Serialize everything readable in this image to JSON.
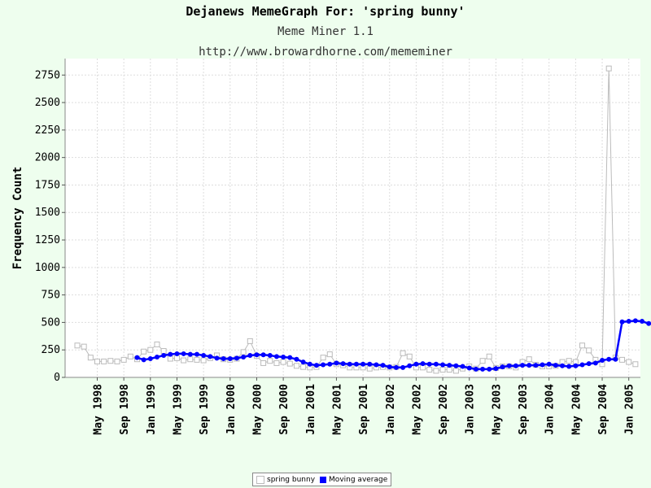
{
  "header": {
    "title": "Dejanews MemeGraph For: 'spring bunny'",
    "subtitle": "Meme Miner 1.1",
    "url": "http://www.browardhorne.com/mememiner"
  },
  "colors": {
    "background": "#eefeee",
    "plot_background": "#ffffff",
    "raw_series": "#bbbbbb",
    "moving_average": "#0000ff"
  },
  "chart_data": {
    "type": "line",
    "title": "Dejanews MemeGraph For: 'spring bunny'",
    "ylabel": "Frequency Count",
    "xlabel": "",
    "ylim": [
      0,
      2900
    ],
    "yticks": [
      0,
      250,
      500,
      750,
      1000,
      1250,
      1500,
      1750,
      2000,
      2250,
      2500,
      2750
    ],
    "x_start_month": "1998-02",
    "xticks": [
      {
        "label": "May 1998",
        "month_index": 3
      },
      {
        "label": "Sep 1998",
        "month_index": 7
      },
      {
        "label": "Jan 1999",
        "month_index": 11
      },
      {
        "label": "May 1999",
        "month_index": 15
      },
      {
        "label": "Sep 1999",
        "month_index": 19
      },
      {
        "label": "Jan 2000",
        "month_index": 23
      },
      {
        "label": "May 2000",
        "month_index": 27
      },
      {
        "label": "Sep 2000",
        "month_index": 31
      },
      {
        "label": "Jan 2001",
        "month_index": 35
      },
      {
        "label": "May 2001",
        "month_index": 39
      },
      {
        "label": "Sep 2001",
        "month_index": 43
      },
      {
        "label": "Jan 2002",
        "month_index": 47
      },
      {
        "label": "May 2002",
        "month_index": 51
      },
      {
        "label": "Sep 2002",
        "month_index": 55
      },
      {
        "label": "Jan 2003",
        "month_index": 59
      },
      {
        "label": "May 2003",
        "month_index": 63
      },
      {
        "label": "Sep 2003",
        "month_index": 67
      },
      {
        "label": "Jan 2004",
        "month_index": 71
      },
      {
        "label": "May 2004",
        "month_index": 75
      },
      {
        "label": "Sep 2004",
        "month_index": 79
      },
      {
        "label": "Jan 2005",
        "month_index": 83
      }
    ],
    "grid": true,
    "legend_position": "bottom",
    "series": [
      {
        "name": "spring bunny",
        "start_index": 0,
        "values": [
          290,
          280,
          180,
          145,
          145,
          150,
          145,
          160,
          190,
          165,
          235,
          250,
          300,
          240,
          170,
          175,
          155,
          165,
          160,
          155,
          175,
          200,
          165,
          160,
          170,
          230,
          330,
          195,
          130,
          150,
          130,
          140,
          125,
          105,
          95,
          90,
          95,
          180,
          210,
          120,
          110,
          90,
          90,
          90,
          80,
          90,
          95,
          90,
          95,
          220,
          190,
          90,
          90,
          70,
          60,
          70,
          70,
          60,
          80,
          100,
          80,
          150,
          190,
          85,
          100,
          100,
          90,
          140,
          165,
          115,
          100,
          100,
          105,
          140,
          150,
          140,
          290,
          245,
          160,
          120,
          2810,
          180,
          160,
          140,
          120
        ]
      },
      {
        "name": "Moving average",
        "start_index": 9,
        "values": [
          180,
          160,
          170,
          185,
          200,
          210,
          215,
          215,
          210,
          210,
          200,
          190,
          175,
          170,
          170,
          175,
          185,
          200,
          205,
          205,
          200,
          190,
          185,
          180,
          165,
          140,
          120,
          110,
          115,
          120,
          130,
          125,
          120,
          120,
          120,
          120,
          115,
          110,
          95,
          90,
          90,
          105,
          120,
          125,
          120,
          120,
          115,
          110,
          105,
          100,
          85,
          75,
          75,
          75,
          80,
          95,
          105,
          105,
          110,
          110,
          110,
          115,
          120,
          110,
          105,
          100,
          105,
          115,
          125,
          130,
          155,
          165,
          165,
          505,
          510,
          515,
          510,
          490
        ]
      }
    ]
  }
}
